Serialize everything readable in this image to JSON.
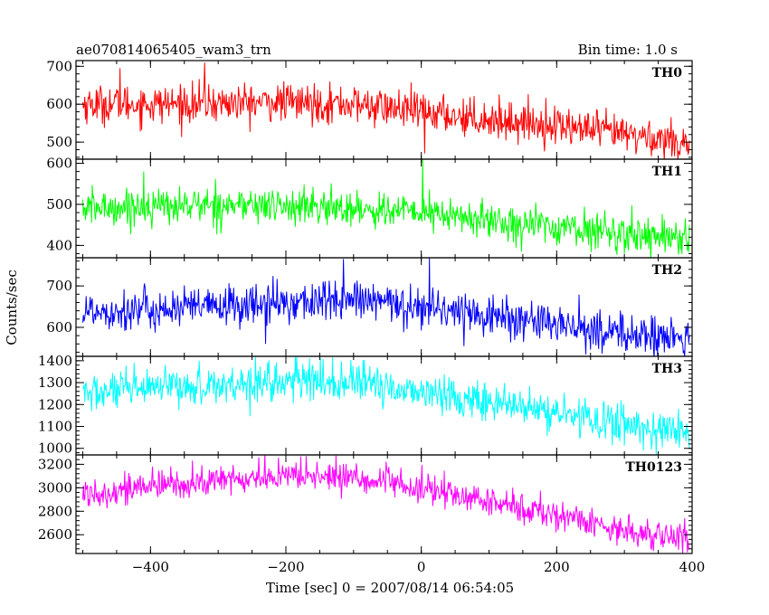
{
  "chart_data": {
    "type": "line",
    "title": "ae070814065405_wam3_trn",
    "bin_time_label": "Bin time: 1.0 s",
    "xlabel": "Time [sec] 0 = 2007/08/14 06:54:05",
    "ylabel": "Counts/sec",
    "xlim": [
      -510,
      400
    ],
    "x_ticks": [
      -400,
      -200,
      0,
      200,
      400
    ],
    "x_tick_labels": [
      "−400",
      "−200",
      "0",
      "200",
      "400"
    ],
    "x_range": [
      -500,
      396
    ],
    "x_step": 1.0,
    "grid": false,
    "panels": [
      {
        "name": "TH0",
        "color": "#ff0000",
        "ylim": [
          455,
          715
        ],
        "y_ticks": [
          500,
          600,
          700
        ],
        "trend_x": [
          -500,
          -400,
          -300,
          -200,
          -100,
          0,
          100,
          200,
          300,
          396
        ],
        "trend_y": [
          600,
          600,
          602,
          605,
          600,
          580,
          560,
          545,
          520,
          500
        ],
        "noise_sd": 25,
        "spikes": [
          {
            "x": -320,
            "y": 710
          },
          {
            "x": -445,
            "y": 695
          },
          {
            "x": 5,
            "y": 470
          },
          {
            "x": 245,
            "y": 515
          }
        ]
      },
      {
        "name": "TH1",
        "color": "#00ff00",
        "ylim": [
          370,
          610
        ],
        "y_ticks": [
          400,
          500,
          600
        ],
        "trend_x": [
          -500,
          -400,
          -300,
          -200,
          -100,
          0,
          100,
          200,
          300,
          396
        ],
        "trend_y": [
          490,
          495,
          500,
          495,
          490,
          480,
          460,
          445,
          430,
          420
        ],
        "noise_sd": 22,
        "spikes": [
          {
            "x": 2,
            "y": 610
          },
          {
            "x": -410,
            "y": 580
          },
          {
            "x": 300,
            "y": 380
          }
        ]
      },
      {
        "name": "TH2",
        "color": "#0000ff",
        "ylim": [
          530,
          768
        ],
        "y_ticks": [
          600,
          700
        ],
        "trend_x": [
          -500,
          -400,
          -300,
          -200,
          -100,
          0,
          100,
          200,
          300,
          396
        ],
        "trend_y": [
          640,
          642,
          650,
          660,
          665,
          650,
          630,
          605,
          585,
          570
        ],
        "noise_sd": 25,
        "spikes": [
          {
            "x": 12,
            "y": 768
          },
          {
            "x": -115,
            "y": 765
          },
          {
            "x": -230,
            "y": 560
          }
        ]
      },
      {
        "name": "TH3",
        "color": "#00ffff",
        "ylim": [
          970,
          1420
        ],
        "y_ticks": [
          1000,
          1100,
          1200,
          1300,
          1400
        ],
        "trend_x": [
          -500,
          -400,
          -300,
          -200,
          -100,
          0,
          100,
          200,
          300,
          396
        ],
        "trend_y": [
          1250,
          1270,
          1290,
          1305,
          1300,
          1260,
          1210,
          1160,
          1110,
          1070
        ],
        "noise_sd": 45,
        "spikes": [
          {
            "x": -245,
            "y": 1420
          },
          {
            "x": -165,
            "y": 1410
          },
          {
            "x": 340,
            "y": 995
          }
        ]
      },
      {
        "name": "TH0123",
        "color": "#ff00ff",
        "ylim": [
          2440,
          3280
        ],
        "y_ticks": [
          2600,
          2800,
          3000,
          3200
        ],
        "trend_x": [
          -500,
          -400,
          -300,
          -200,
          -100,
          0,
          100,
          200,
          300,
          396
        ],
        "trend_y": [
          2950,
          3010,
          3060,
          3100,
          3090,
          2990,
          2880,
          2770,
          2640,
          2560
        ],
        "noise_sd": 65,
        "spikes": [
          {
            "x": -170,
            "y": 3270
          },
          {
            "x": -240,
            "y": 3260
          },
          {
            "x": 380,
            "y": 2470
          }
        ]
      }
    ]
  }
}
